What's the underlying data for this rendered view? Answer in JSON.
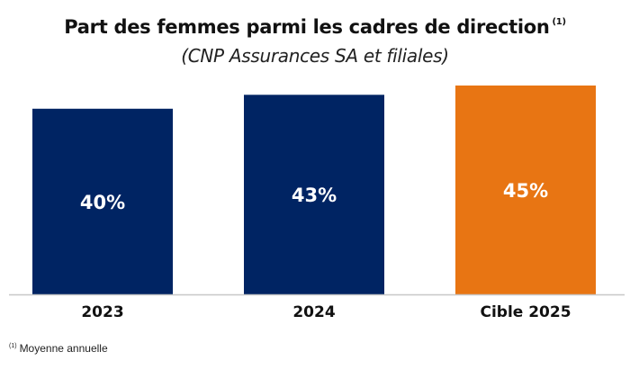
{
  "chart_data": {
    "type": "bar",
    "title": "Part des femmes parmi les cadres de direction",
    "title_note": "(1)",
    "subtitle": "(CNP Assurances SA et filiales)",
    "categories": [
      "2023",
      "2024",
      "Cible 2025"
    ],
    "values": [
      40,
      43,
      45
    ],
    "data_labels": [
      "40%",
      "43%",
      "45%"
    ],
    "colors": [
      "#002463",
      "#002463",
      "#E87513"
    ],
    "label_color": "#ffffff",
    "unit": "%",
    "xlabel": "",
    "ylabel": "",
    "ylim": [
      0,
      45
    ],
    "grid": false,
    "legend": "none"
  },
  "footnote": {
    "marker": "(1)",
    "text": "Moyenne annuelle"
  }
}
